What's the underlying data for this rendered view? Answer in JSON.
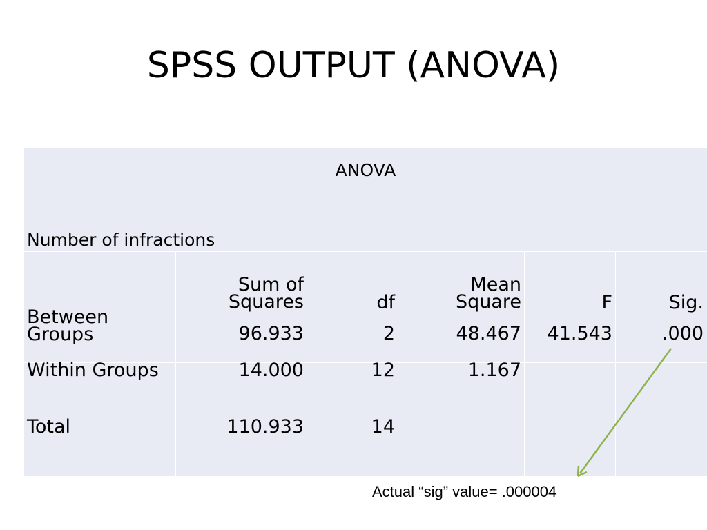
{
  "slide": {
    "title": "SPSS OUTPUT (ANOVA)"
  },
  "table": {
    "caption": "ANOVA",
    "dependent_variable": "Number of infractions",
    "headers": {
      "row_label": "",
      "sum_of_squares_line1": "Sum of",
      "sum_of_squares_line2": "Squares",
      "df": "df",
      "mean_square_line1": "Mean",
      "mean_square_line2": "Square",
      "f": "F",
      "sig": "Sig."
    },
    "rows": [
      {
        "label_line1": "Between",
        "label_line2": "Groups",
        "sum_of_squares": "96.933",
        "df": "2",
        "mean_square": "48.467",
        "f": "41.543",
        "sig": ".000"
      },
      {
        "label": "Within Groups",
        "sum_of_squares": "14.000",
        "df": "12",
        "mean_square": "1.167",
        "f": "",
        "sig": ""
      },
      {
        "label": "Total",
        "sum_of_squares": "110.933",
        "df": "14",
        "mean_square": "",
        "f": "",
        "sig": ""
      }
    ]
  },
  "annotation": {
    "text": "Actual “sig” value= .000004",
    "arrow_color": "#8db24c"
  },
  "colors": {
    "table_background": "#e8eaf4",
    "grid_lines": "#ffffff"
  }
}
